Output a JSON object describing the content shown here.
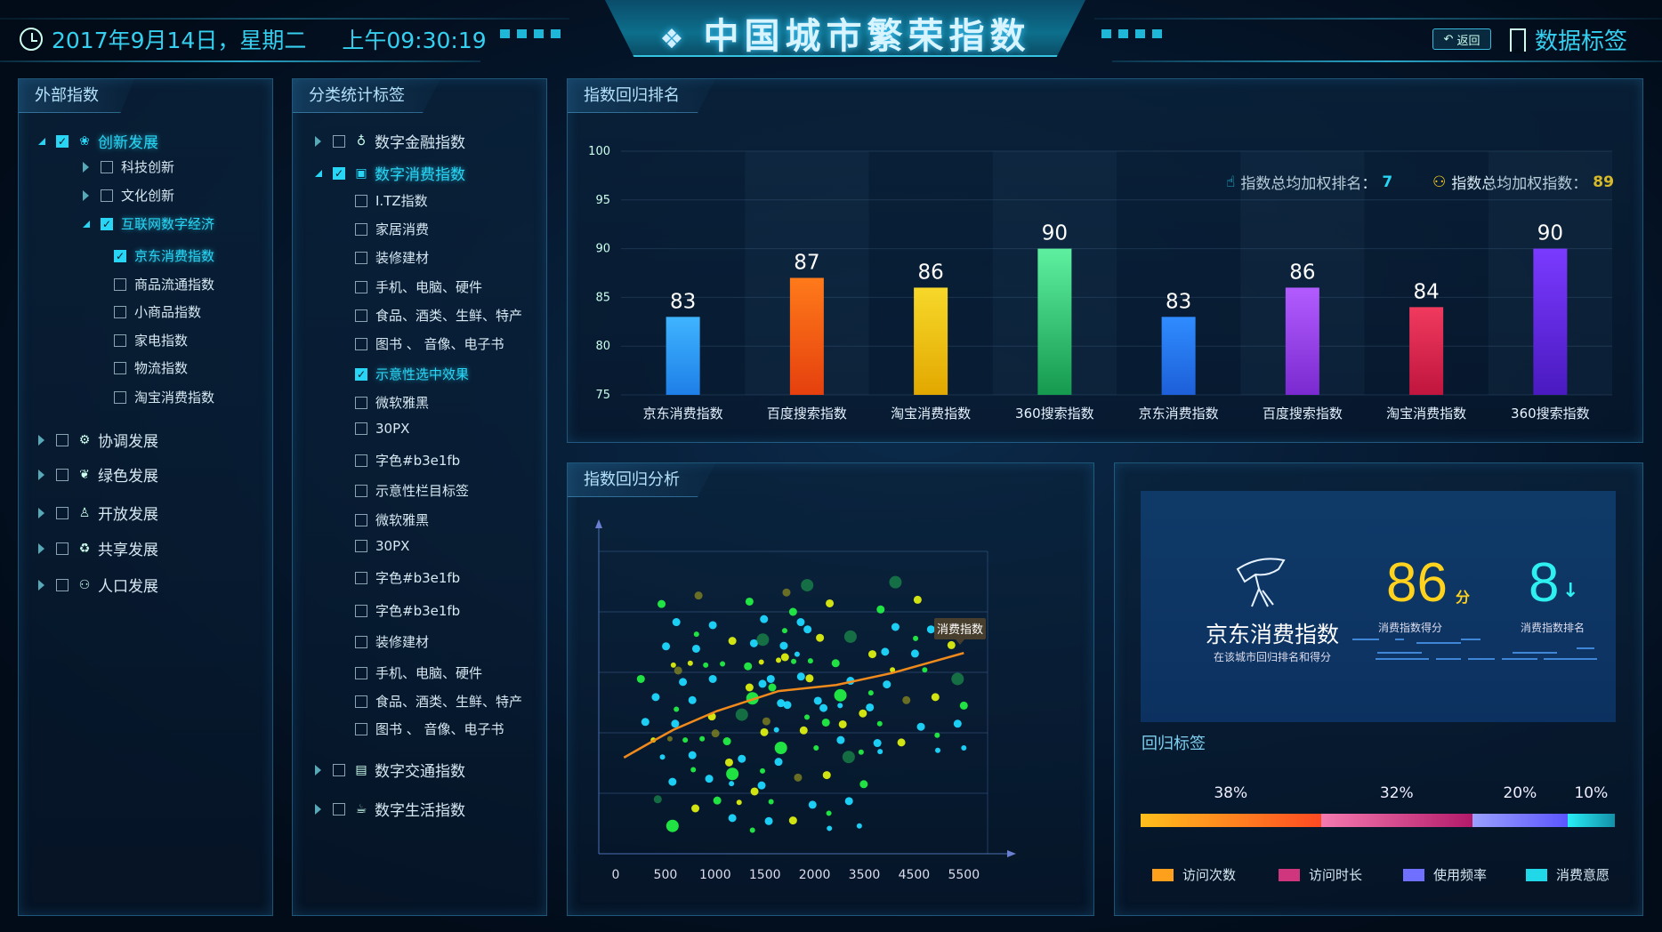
{
  "header": {
    "date": "2017年9月14日，星期二",
    "time": "上午09:30:19",
    "title": "中国城市繁荣指数",
    "back_label": "返回",
    "tags_label": "数据标签"
  },
  "external_panel": {
    "title": "外部指数",
    "items": [
      {
        "label": "创新发展",
        "level": 0,
        "expand": "open",
        "checked": true,
        "icon": "atom-icon",
        "active": true
      },
      {
        "label": "科技创新",
        "level": 1,
        "expand": "closed",
        "checked": false
      },
      {
        "label": "文化创新",
        "level": 1,
        "expand": "closed",
        "checked": false
      },
      {
        "label": "互联网数字经济",
        "level": 1,
        "expand": "open",
        "checked": true,
        "active": true
      },
      {
        "label": "京东消费指数",
        "level": 2,
        "checked": true,
        "active": true
      },
      {
        "label": "商品流通指数",
        "level": 2,
        "checked": false
      },
      {
        "label": "小商品指数",
        "level": 2,
        "checked": false
      },
      {
        "label": "家电指数",
        "level": 2,
        "checked": false
      },
      {
        "label": "物流指数",
        "level": 2,
        "checked": false
      },
      {
        "label": "淘宝消费指数",
        "level": 2,
        "checked": false
      },
      {
        "label": "协调发展",
        "level": 0,
        "expand": "closed",
        "checked": false,
        "icon": "gear-icon"
      },
      {
        "label": "绿色发展",
        "level": 0,
        "expand": "closed",
        "checked": false,
        "icon": "leaf-icon"
      },
      {
        "label": "开放发展",
        "level": 0,
        "expand": "closed",
        "checked": false,
        "icon": "people-icon"
      },
      {
        "label": "共享发展",
        "level": 0,
        "expand": "closed",
        "checked": false,
        "icon": "recycle-icon"
      },
      {
        "label": "人口发展",
        "level": 0,
        "expand": "closed",
        "checked": false,
        "icon": "users-icon"
      }
    ]
  },
  "category_panel": {
    "title": "分类统计标签",
    "items": [
      {
        "label": "数字金融指数",
        "level": 0,
        "expand": "closed",
        "checked": false,
        "icon": "money-bag-icon"
      },
      {
        "label": "数字消费指数",
        "level": 0,
        "expand": "open",
        "checked": true,
        "icon": "wallet-icon",
        "active": true
      },
      {
        "label": "I.TZ指数",
        "level": 1,
        "checked": false
      },
      {
        "label": "家居消费",
        "level": 1,
        "checked": false
      },
      {
        "label": "装修建材",
        "level": 1,
        "checked": false
      },
      {
        "label": "手机、电脑、硬件",
        "level": 1,
        "checked": false
      },
      {
        "label": "食品、酒类、生鲜、特产",
        "level": 1,
        "checked": false
      },
      {
        "label": "图书 、 音像、电子书",
        "level": 1,
        "checked": false
      },
      {
        "label": "示意性选中效果",
        "level": 1,
        "checked": true,
        "active": true
      },
      {
        "label": "微软雅黑",
        "level": 1,
        "checked": false
      },
      {
        "label": "30PX",
        "level": 1,
        "checked": false
      },
      {
        "label": "字色#b3e1fb",
        "level": 1,
        "checked": false
      },
      {
        "label": "示意性栏目标签",
        "level": 1,
        "checked": false
      },
      {
        "label": "微软雅黑",
        "level": 1,
        "checked": false
      },
      {
        "label": "30PX",
        "level": 1,
        "checked": false
      },
      {
        "label": "字色#b3e1fb",
        "level": 1,
        "checked": false
      },
      {
        "label": "字色#b3e1fb",
        "level": 1,
        "checked": false
      },
      {
        "label": "装修建材",
        "level": 1,
        "checked": false
      },
      {
        "label": "手机、电脑、硬件",
        "level": 1,
        "checked": false
      },
      {
        "label": "食品、酒类、生鲜、特产",
        "level": 1,
        "checked": false
      },
      {
        "label": "图书 、 音像、电子书",
        "level": 1,
        "checked": false
      },
      {
        "label": "数字交通指数",
        "level": 0,
        "expand": "closed",
        "checked": false,
        "icon": "bus-icon"
      },
      {
        "label": "数字生活指数",
        "level": 0,
        "expand": "closed",
        "checked": false,
        "icon": "cup-icon"
      }
    ]
  },
  "ranking_panel": {
    "title": "指数回归排名",
    "stat_rank_label": "指数总均加权排名：",
    "stat_rank_value": "7",
    "stat_index_label": "指数总均加权指数：",
    "stat_index_value": "89"
  },
  "analysis_panel": {
    "title": "指数回归分析"
  },
  "info_panel": {
    "brand": "京东消费指数",
    "subtitle": "在该城市回归排名和得分",
    "score": "86",
    "score_unit": "分",
    "score_label": "消费指数得分",
    "rank": "8",
    "rank_label": "消费指数排名",
    "rank_trend": "down",
    "tags_title": "回归标签"
  },
  "colors": {
    "accent": "#28d5f5",
    "score": "#ffd21e",
    "rank": "#2ff0f0",
    "trend": "#f08a1c"
  },
  "chart_data": [
    {
      "type": "bar",
      "categories": [
        "京东消费指数",
        "百度搜索指数",
        "淘宝消费指数",
        "360搜索指数",
        "京东消费指数",
        "百度搜索指数",
        "淘宝消费指数",
        "360搜索指数"
      ],
      "values": [
        83,
        87,
        86,
        90,
        83,
        86,
        84,
        90
      ],
      "ylim": [
        75,
        100
      ],
      "yticks": [
        75,
        80,
        85,
        90,
        95,
        100
      ],
      "grid": true,
      "bar_colors": [
        [
          "#3fb4ff",
          "#1e7fe8"
        ],
        [
          "#ff7a1a",
          "#e5400e"
        ],
        [
          "#f7d82a",
          "#e2a800"
        ],
        [
          "#5ef0a0",
          "#15994e"
        ],
        [
          "#2f8cff",
          "#1d5fd8"
        ],
        [
          "#b25cff",
          "#7a2ad0"
        ],
        [
          "#f03a5e",
          "#c0153e"
        ],
        [
          "#7a3aff",
          "#4a1ac0"
        ]
      ]
    },
    {
      "type": "scatter",
      "xticks": [
        "0",
        "500",
        "1000",
        "1500",
        "2000",
        "3500",
        "4500",
        "5500"
      ],
      "xtick_values": [
        0,
        500,
        1000,
        1500,
        2000,
        3500,
        4500,
        5500
      ],
      "ylim": [
        0,
        5
      ],
      "grid": true,
      "tooltip": "消费指数",
      "color_keys": {
        "c": "#1ed8ff",
        "g": "#22ee44",
        "y": "#ddee11",
        "d": "#1a8a4a",
        "o": "#8a8a20"
      },
      "points": [
        [
          461,
          4.13,
          2,
          "g"
        ],
        [
          833,
          4.27,
          2,
          "o"
        ],
        [
          1345,
          4.17,
          2,
          "g"
        ],
        [
          1717,
          4.32,
          2,
          "o"
        ],
        [
          1925,
          4.44,
          3,
          "d"
        ],
        [
          2455,
          4.14,
          2,
          "y"
        ],
        [
          4125,
          4.49,
          3,
          "d"
        ],
        [
          4571,
          4.2,
          2,
          "y"
        ],
        [
          3827,
          4.04,
          2,
          "g"
        ],
        [
          610,
          3.83,
          2,
          "c"
        ],
        [
          976,
          3.78,
          2,
          "c"
        ],
        [
          1491,
          3.88,
          2,
          "c"
        ],
        [
          1783,
          4.0,
          2,
          "g"
        ],
        [
          1860,
          3.83,
          2,
          "c"
        ],
        [
          1929,
          3.71,
          2,
          "c"
        ],
        [
          2161,
          3.57,
          2,
          "y"
        ],
        [
          3081,
          3.59,
          3,
          "d"
        ],
        [
          4125,
          3.75,
          2,
          "c"
        ],
        [
          4839,
          3.71,
          2,
          "c"
        ],
        [
          506,
          3.43,
          2,
          "c"
        ],
        [
          812,
          3.63,
          1,
          "g"
        ],
        [
          809,
          3.39,
          2,
          "c"
        ],
        [
          1173,
          3.52,
          2,
          "y"
        ],
        [
          1390,
          3.48,
          2,
          "c"
        ],
        [
          1479,
          3.54,
          3,
          "d"
        ],
        [
          1699,
          3.69,
          1,
          "g"
        ],
        [
          1690,
          3.44,
          2,
          "c"
        ],
        [
          1824,
          3.3,
          1,
          "c"
        ],
        [
          4530,
          3.56,
          1,
          "g"
        ],
        [
          4518,
          3.31,
          2,
          "c"
        ],
        [
          5250,
          3.45,
          2,
          "y"
        ],
        [
          3661,
          3.3,
          2,
          "y"
        ],
        [
          3917,
          3.34,
          2,
          "c"
        ],
        [
          580,
          3.12,
          1,
          "y"
        ],
        [
          628,
          3.03,
          2,
          "o"
        ],
        [
          750,
          3.15,
          1,
          "y"
        ],
        [
          905,
          3.12,
          1,
          "g"
        ],
        [
          1074,
          3.14,
          1,
          "g"
        ],
        [
          1330,
          3.1,
          2,
          "g"
        ],
        [
          1464,
          3.17,
          1,
          "y"
        ],
        [
          1637,
          3.2,
          1,
          "y"
        ],
        [
          1702,
          3.25,
          2,
          "y"
        ],
        [
          1789,
          3.18,
          1,
          "g"
        ],
        [
          1958,
          3.19,
          1,
          "g"
        ],
        [
          2634,
          3.15,
          2,
          "g"
        ],
        [
          253,
          2.89,
          2,
          "g"
        ],
        [
          676,
          2.84,
          2,
          "c"
        ],
        [
          976,
          2.89,
          2,
          "c"
        ],
        [
          1476,
          2.81,
          2,
          "c"
        ],
        [
          1559,
          2.89,
          2,
          "c"
        ],
        [
          1345,
          2.75,
          2,
          "y"
        ],
        [
          1574,
          2.75,
          2,
          "g"
        ],
        [
          1863,
          2.93,
          2,
          "c"
        ],
        [
          1949,
          2.9,
          2,
          "y"
        ],
        [
          4065,
          3.04,
          1,
          "y"
        ],
        [
          4714,
          3.04,
          1,
          "g"
        ],
        [
          5375,
          2.89,
          3,
          "d"
        ],
        [
          3081,
          2.86,
          2,
          "c"
        ],
        [
          3952,
          2.8,
          2,
          "c"
        ],
        [
          402,
          2.59,
          2,
          "c"
        ],
        [
          771,
          2.54,
          2,
          "c"
        ],
        [
          610,
          2.39,
          1,
          "g"
        ],
        [
          1375,
          2.57,
          3,
          "g"
        ],
        [
          1661,
          2.49,
          2,
          "c"
        ],
        [
          1726,
          2.46,
          2,
          "c"
        ],
        [
          2098,
          2.53,
          2,
          "c"
        ],
        [
          2268,
          2.41,
          2,
          "c"
        ],
        [
          2777,
          2.62,
          3,
          "g"
        ],
        [
          2768,
          2.45,
          1,
          "c"
        ],
        [
          3631,
          2.66,
          1,
          "g"
        ],
        [
          3611,
          2.42,
          2,
          "c"
        ],
        [
          4345,
          2.54,
          2,
          "o"
        ],
        [
          4928,
          2.59,
          2,
          "y"
        ],
        [
          5643,
          2.45,
          2,
          "g"
        ],
        [
          298,
          2.18,
          2,
          "c"
        ],
        [
          598,
          2.15,
          2,
          "c"
        ],
        [
          967,
          2.27,
          2,
          "y"
        ],
        [
          1268,
          2.3,
          3,
          "d"
        ],
        [
          1515,
          2.19,
          2,
          "o"
        ],
        [
          1923,
          2.26,
          1,
          "g"
        ],
        [
          2339,
          2.17,
          2,
          "g"
        ],
        [
          2848,
          2.14,
          2,
          "y"
        ],
        [
          3455,
          2.32,
          2,
          "y"
        ],
        [
          3809,
          2.15,
          1,
          "g"
        ],
        [
          4637,
          2.1,
          2,
          "c"
        ],
        [
          5375,
          2.15,
          2,
          "c"
        ],
        [
          378,
          1.88,
          1,
          "y"
        ],
        [
          545,
          1.9,
          1,
          "o"
        ],
        [
          699,
          1.88,
          1,
          "g"
        ],
        [
          869,
          1.9,
          1,
          "g"
        ],
        [
          1003,
          1.99,
          2,
          "o"
        ],
        [
          1119,
          1.86,
          2,
          "g"
        ],
        [
          1494,
          2.01,
          2,
          "y"
        ],
        [
          1616,
          2.05,
          1,
          "c"
        ],
        [
          1890,
          2.04,
          2,
          "y"
        ],
        [
          1661,
          1.75,
          3,
          "g"
        ],
        [
          2045,
          1.75,
          1,
          "g"
        ],
        [
          2786,
          1.88,
          2,
          "c"
        ],
        [
          3762,
          1.83,
          2,
          "c"
        ],
        [
          4244,
          1.84,
          2,
          "y"
        ],
        [
          4964,
          1.96,
          1,
          "g"
        ],
        [
          470,
          1.6,
          1,
          "c"
        ],
        [
          771,
          1.63,
          2,
          "c"
        ],
        [
          1140,
          1.51,
          2,
          "y"
        ],
        [
          1268,
          1.57,
          2,
          "c"
        ],
        [
          3027,
          1.6,
          3,
          "d"
        ],
        [
          3402,
          1.68,
          1,
          "g"
        ],
        [
          3816,
          1.69,
          1,
          "c"
        ],
        [
          4976,
          1.71,
          1,
          "c"
        ],
        [
          5583,
          1.75,
          1,
          "c"
        ],
        [
          780,
          1.39,
          1,
          "g"
        ],
        [
          1173,
          1.32,
          3,
          "g"
        ],
        [
          1637,
          1.52,
          2,
          "c"
        ],
        [
          1476,
          1.37,
          1,
          "g"
        ],
        [
          940,
          1.24,
          2,
          "c"
        ],
        [
          571,
          1.19,
          2,
          "c"
        ],
        [
          1164,
          1.16,
          1,
          "c"
        ],
        [
          1467,
          1.13,
          2,
          "c"
        ],
        [
          1833,
          1.26,
          2,
          "o"
        ],
        [
          2366,
          1.3,
          2,
          "y"
        ],
        [
          3482,
          1.15,
          2,
          "g"
        ],
        [
          1396,
          1.03,
          2,
          "y"
        ],
        [
          423,
          0.9,
          2,
          "d"
        ],
        [
          801,
          0.75,
          2,
          "y"
        ],
        [
          1021,
          0.88,
          2,
          "g"
        ],
        [
          1241,
          0.85,
          1,
          "y"
        ],
        [
          1562,
          0.86,
          1,
          "g"
        ],
        [
          1979,
          0.81,
          2,
          "c"
        ],
        [
          3036,
          0.87,
          2,
          "c"
        ],
        [
          571,
          0.46,
          3,
          "g"
        ],
        [
          1173,
          0.59,
          2,
          "c"
        ],
        [
          1375,
          0.39,
          1,
          "g"
        ],
        [
          1539,
          0.54,
          2,
          "c"
        ],
        [
          1783,
          0.55,
          2,
          "y"
        ],
        [
          2429,
          0.67,
          1,
          "g"
        ],
        [
          2446,
          0.42,
          1,
          "c"
        ],
        [
          3349,
          0.46,
          1,
          "c"
        ]
      ],
      "trend_line": [
        [
          83,
          1.59
        ],
        [
          372,
          1.86
        ],
        [
          580,
          2.05
        ],
        [
          1018,
          2.36
        ],
        [
          1637,
          2.69
        ],
        [
          2652,
          2.79
        ],
        [
          4065,
          2.99
        ],
        [
          4720,
          3.14
        ],
        [
          5613,
          3.32
        ]
      ]
    },
    {
      "type": "bar",
      "orientation": "stacked-horizontal",
      "categories": [
        "访问次数",
        "访问时长",
        "使用频率",
        "消费意愿"
      ],
      "values": [
        38,
        32,
        20,
        10
      ],
      "labels": [
        "38%",
        "32%",
        "20%",
        "10%"
      ],
      "colors": [
        [
          "#ffbf1c",
          "#ff4a22"
        ],
        [
          "#f57ab0",
          "#b31a6a"
        ],
        [
          "#9aa0ff",
          "#5a55ff"
        ],
        [
          "#28eef5",
          "#138fa8"
        ]
      ],
      "legend_colors": [
        "#ffa01c",
        "#d0367e",
        "#6f70ff",
        "#20d8e8"
      ],
      "legend": "bottom"
    }
  ]
}
